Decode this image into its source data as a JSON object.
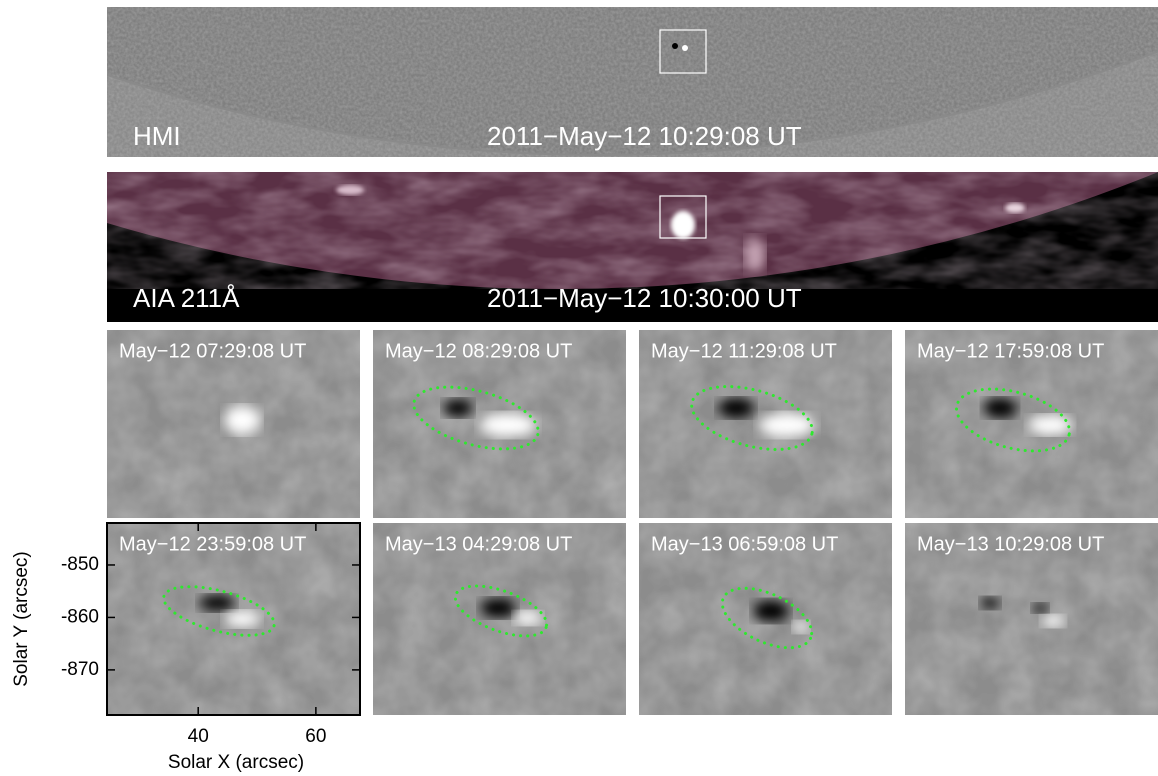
{
  "panels": {
    "hmi": {
      "label": "HMI",
      "time": "2011−May−12 10:29:08 UT"
    },
    "aia": {
      "label": "AIA 211Å",
      "time": "2011−May−12 10:30:00 UT"
    }
  },
  "zoom_times": [
    "May−12 07:29:08 UT",
    "May−12 08:29:08 UT",
    "May−12 11:29:08 UT",
    "May−12 17:59:08 UT",
    "May−12 23:59:08 UT",
    "May−13 04:29:08 UT",
    "May−13 06:59:08 UT",
    "May−13 10:29:08 UT"
  ],
  "axes": {
    "xlabel": "Solar X (arcsec)",
    "ylabel": "Solar Y (arcsec)",
    "xlim": [
      24.5,
      67.5
    ],
    "ylim": [
      -878.6,
      -842.0
    ],
    "xticks": [
      40,
      60
    ],
    "yticks": [
      -850,
      -860,
      -870
    ]
  }
}
